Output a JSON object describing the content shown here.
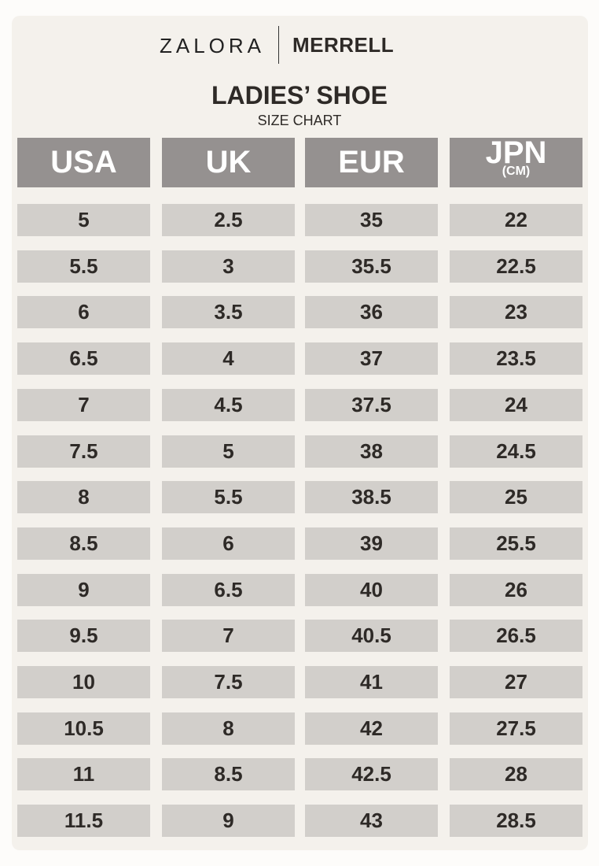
{
  "brand": {
    "left": "ZALORA",
    "right": "MERRELL"
  },
  "title": "LADIES’ SHOE",
  "subtitle": "SIZE CHART",
  "columns": [
    {
      "label": "USA"
    },
    {
      "label": "UK"
    },
    {
      "label": "EUR"
    },
    {
      "label": "JPN",
      "sublabel": "(CM)"
    }
  ],
  "rows": [
    [
      "5",
      "2.5",
      "35",
      "22"
    ],
    [
      "5.5",
      "3",
      "35.5",
      "22.5"
    ],
    [
      "6",
      "3.5",
      "36",
      "23"
    ],
    [
      "6.5",
      "4",
      "37",
      "23.5"
    ],
    [
      "7",
      "4.5",
      "37.5",
      "24"
    ],
    [
      "7.5",
      "5",
      "38",
      "24.5"
    ],
    [
      "8",
      "5.5",
      "38.5",
      "25"
    ],
    [
      "8.5",
      "6",
      "39",
      "25.5"
    ],
    [
      "9",
      "6.5",
      "40",
      "26"
    ],
    [
      "9.5",
      "7",
      "40.5",
      "26.5"
    ],
    [
      "10",
      "7.5",
      "41",
      "27"
    ],
    [
      "10.5",
      "8",
      "42",
      "27.5"
    ],
    [
      "11",
      "8.5",
      "42.5",
      "28"
    ],
    [
      "11.5",
      "9",
      "43",
      "28.5"
    ]
  ],
  "colors": {
    "header_bg": "#959190",
    "cell_bg": "#d2cfcb",
    "card_bg": "#f4f1ec",
    "text": "#2e2a27"
  }
}
